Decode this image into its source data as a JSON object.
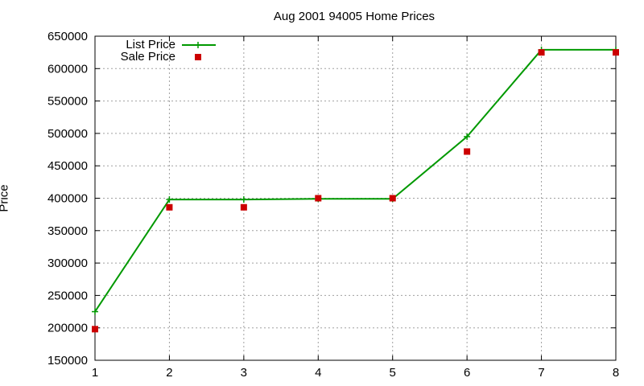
{
  "chart_data": {
    "type": "line",
    "title": "Aug 2001 94005 Home Prices",
    "xlabel": "",
    "ylabel": "Price",
    "xlim": [
      1,
      8
    ],
    "ylim": [
      150000,
      650000
    ],
    "xticks": [
      "1",
      "2",
      "3",
      "4",
      "5",
      "6",
      "7",
      "8"
    ],
    "yticks": [
      "150000",
      "200000",
      "250000",
      "300000",
      "350000",
      "400000",
      "450000",
      "500000",
      "550000",
      "600000",
      "650000"
    ],
    "grid": true,
    "legend_position": "top-left",
    "series": [
      {
        "name": "List Price",
        "style": "lines+points",
        "color": "#009900",
        "x": [
          1,
          2,
          3,
          4,
          5,
          6,
          7,
          8
        ],
        "y": [
          225000,
          398000,
          398000,
          399000,
          399000,
          495000,
          629000,
          629000
        ]
      },
      {
        "name": "Sale Price",
        "style": "points",
        "color": "#cc0000",
        "x": [
          1,
          2,
          3,
          4,
          5,
          6,
          7,
          8
        ],
        "y": [
          198000,
          386000,
          386000,
          400000,
          400000,
          472000,
          625000,
          625000
        ]
      }
    ]
  }
}
